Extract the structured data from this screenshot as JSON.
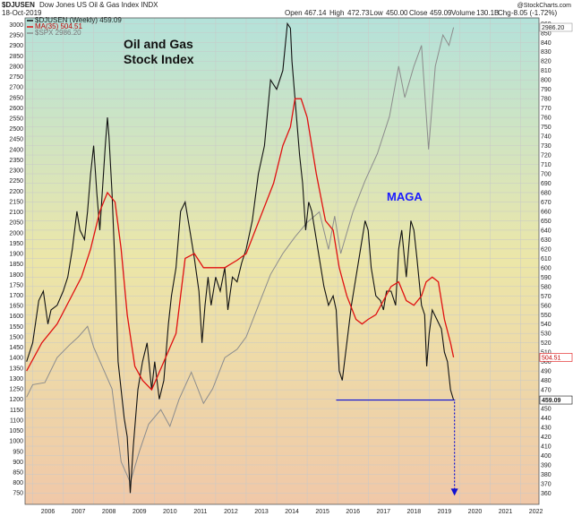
{
  "header": {
    "symbol": "$DJUSEN",
    "description": "Dow Jones US Oil & Gas Index  INDX",
    "date": "18-Oct-2019",
    "open_label": "Open",
    "open_value": "467.14",
    "high_label": "High",
    "high_value": "472.73",
    "low_label": "Low",
    "low_value": "450.00",
    "close_label": "Close",
    "close_value": "459.09",
    "volume_label": "Volume",
    "volume_value": "130.1B",
    "chg_label": "Chg",
    "chg_value": "-8.05 (-1.72%)",
    "logo": "@StockCharts.com"
  },
  "legend": {
    "main": "$DJUSEN (Weekly) 459.09",
    "ma": "MA(35) 504.51",
    "spx": "$SPX 2986.20"
  },
  "annotations": {
    "title_line1": "Oil and Gas",
    "title_line2": "Stock Index",
    "maga": "MAGA"
  },
  "price_tags": {
    "spx": "2986.20",
    "ma": "504.51",
    "close": "459.09"
  },
  "colors": {
    "price": "#111111",
    "ma": "#e01010",
    "spx": "#8c8c8c",
    "support": "#1010d0",
    "maga": "#1a1aff",
    "bg_top": "#b4e2da",
    "bg_mid": "#ece6a8",
    "bg_bottom": "#f0c8a8"
  },
  "chart_data": {
    "type": "line",
    "xlabel": "",
    "ylabel": "",
    "x_ticks": [
      "2006",
      "2007",
      "2008",
      "2009",
      "2010",
      "2011",
      "2012",
      "2013",
      "2014",
      "2015",
      "2016",
      "2017",
      "2018",
      "2019",
      "2020",
      "2021",
      "2022"
    ],
    "y_left_ticks": [
      750,
      800,
      850,
      900,
      950,
      1000,
      1050,
      1100,
      1150,
      1200,
      1250,
      1300,
      1350,
      1400,
      1450,
      1500,
      1550,
      1600,
      1650,
      1700,
      1750,
      1800,
      1850,
      1900,
      1950,
      2000,
      2050,
      2100,
      2150,
      2200,
      2250,
      2300,
      2350,
      2400,
      2450,
      2500,
      2550,
      2600,
      2650,
      2700,
      2750,
      2800,
      2850,
      2900,
      2950,
      3000
    ],
    "y_right_ticks": [
      360,
      370,
      380,
      390,
      400,
      410,
      420,
      430,
      440,
      450,
      460,
      470,
      480,
      490,
      500,
      510,
      520,
      530,
      540,
      550,
      560,
      570,
      580,
      590,
      600,
      610,
      620,
      630,
      640,
      650,
      660,
      670,
      680,
      690,
      700,
      710,
      720,
      730,
      740,
      750,
      760,
      770,
      780,
      790,
      800,
      810,
      820,
      830,
      840,
      850,
      860
    ],
    "x_range": [
      2005.75,
      2022.6
    ],
    "y_right_range": [
      348,
      866
    ],
    "y_left_range": [
      695,
      3032
    ],
    "grid": true,
    "series": [
      {
        "name": "$DJUSEN (Weekly)",
        "axis": "right",
        "x": [
          2005.8,
          2006.0,
          2006.2,
          2006.35,
          2006.5,
          2006.6,
          2006.8,
          2007.0,
          2007.15,
          2007.3,
          2007.45,
          2007.55,
          2007.7,
          2007.8,
          2007.9,
          2008.0,
          2008.1,
          2008.2,
          2008.3,
          2008.38,
          2008.45,
          2008.5,
          2008.6,
          2008.7,
          2008.8,
          2008.9,
          2009.0,
          2009.1,
          2009.2,
          2009.3,
          2009.45,
          2009.6,
          2009.75,
          2009.9,
          2010.0,
          2010.15,
          2010.3,
          2010.45,
          2010.55,
          2010.7,
          2010.85,
          2011.0,
          2011.15,
          2011.3,
          2011.45,
          2011.55,
          2011.65,
          2011.75,
          2011.85,
          2012.0,
          2012.15,
          2012.3,
          2012.4,
          2012.55,
          2012.7,
          2012.85,
          2013.0,
          2013.2,
          2013.4,
          2013.6,
          2013.8,
          2014.0,
          2014.2,
          2014.35,
          2014.45,
          2014.5,
          2014.55,
          2014.65,
          2014.75,
          2014.85,
          2014.95,
          2015.05,
          2015.15,
          2015.25,
          2015.4,
          2015.55,
          2015.7,
          2015.85,
          2015.95,
          2016.05,
          2016.15,
          2016.3,
          2016.45,
          2016.6,
          2016.75,
          2016.9,
          2017.0,
          2017.1,
          2017.25,
          2017.4,
          2017.5,
          2017.6,
          2017.75,
          2017.9,
          2018.0,
          2018.1,
          2018.25,
          2018.4,
          2018.5,
          2018.6,
          2018.75,
          2018.85,
          2018.92,
          2019.0,
          2019.1,
          2019.25,
          2019.4,
          2019.5,
          2019.6,
          2019.7,
          2019.8
        ],
        "values": [
          500,
          520,
          565,
          575,
          540,
          555,
          560,
          575,
          590,
          620,
          660,
          640,
          630,
          660,
          700,
          730,
          680,
          640,
          690,
          730,
          760,
          740,
          680,
          600,
          500,
          470,
          440,
          420,
          360,
          410,
          470,
          500,
          520,
          470,
          500,
          460,
          480,
          540,
          570,
          600,
          660,
          670,
          640,
          610,
          575,
          520,
          560,
          590,
          560,
          590,
          575,
          600,
          555,
          590,
          585,
          605,
          620,
          650,
          700,
          730,
          800,
          790,
          810,
          860,
          855,
          820,
          800,
          760,
          720,
          690,
          640,
          670,
          660,
          640,
          610,
          580,
          560,
          570,
          555,
          490,
          480,
          520,
          560,
          590,
          620,
          650,
          640,
          600,
          570,
          565,
          555,
          575,
          575,
          560,
          620,
          640,
          590,
          650,
          640,
          610,
          560,
          550,
          495,
          530,
          555,
          545,
          535,
          510,
          500,
          470,
          459.09
        ]
      },
      {
        "name": "MA(35)",
        "axis": "right",
        "x": [
          2005.8,
          2006.3,
          2006.8,
          2007.2,
          2007.6,
          2007.9,
          2008.2,
          2008.45,
          2008.7,
          2008.9,
          2009.1,
          2009.35,
          2009.6,
          2009.9,
          2010.3,
          2010.7,
          2011.0,
          2011.3,
          2011.6,
          2011.9,
          2012.3,
          2012.7,
          2013.0,
          2013.3,
          2013.6,
          2013.9,
          2014.2,
          2014.45,
          2014.6,
          2014.8,
          2015.0,
          2015.3,
          2015.6,
          2015.85,
          2016.05,
          2016.3,
          2016.6,
          2016.8,
          2017.0,
          2017.25,
          2017.5,
          2017.75,
          2018.0,
          2018.25,
          2018.5,
          2018.75,
          2018.9,
          2019.1,
          2019.3,
          2019.5,
          2019.7,
          2019.8
        ],
        "values": [
          490,
          520,
          540,
          565,
          590,
          620,
          660,
          680,
          670,
          620,
          550,
          495,
          480,
          470,
          500,
          530,
          610,
          615,
          600,
          600,
          600,
          608,
          615,
          640,
          665,
          690,
          730,
          750,
          780,
          780,
          760,
          700,
          650,
          640,
          600,
          570,
          545,
          540,
          545,
          550,
          565,
          580,
          585,
          565,
          560,
          570,
          585,
          590,
          585,
          545,
          520,
          504.51
        ]
      },
      {
        "name": "$SPX",
        "axis": "left",
        "x": [
          2005.8,
          2006.0,
          2006.4,
          2006.8,
          2007.2,
          2007.5,
          2007.8,
          2008.0,
          2008.3,
          2008.6,
          2008.9,
          2009.2,
          2009.5,
          2009.8,
          2010.2,
          2010.5,
          2010.8,
          2011.2,
          2011.6,
          2011.9,
          2012.3,
          2012.7,
          2013.0,
          2013.4,
          2013.8,
          2014.2,
          2014.6,
          2015.0,
          2015.4,
          2015.7,
          2015.9,
          2016.1,
          2016.5,
          2016.9,
          2017.3,
          2017.7,
          2018.0,
          2018.2,
          2018.5,
          2018.75,
          2018.98,
          2019.2,
          2019.45,
          2019.65,
          2019.8
        ],
        "values": [
          1210,
          1270,
          1280,
          1400,
          1460,
          1500,
          1550,
          1450,
          1350,
          1250,
          900,
          800,
          950,
          1080,
          1150,
          1070,
          1200,
          1330,
          1180,
          1250,
          1400,
          1440,
          1500,
          1650,
          1800,
          1900,
          1980,
          2050,
          2100,
          1920,
          2080,
          1900,
          2100,
          2250,
          2380,
          2560,
          2800,
          2650,
          2800,
          2900,
          2400,
          2800,
          2950,
          2900,
          2986.2
        ]
      }
    ],
    "support_level": 459.09,
    "support_from": 2015.95,
    "support_to": 2019.85,
    "projection_to": 360
  }
}
